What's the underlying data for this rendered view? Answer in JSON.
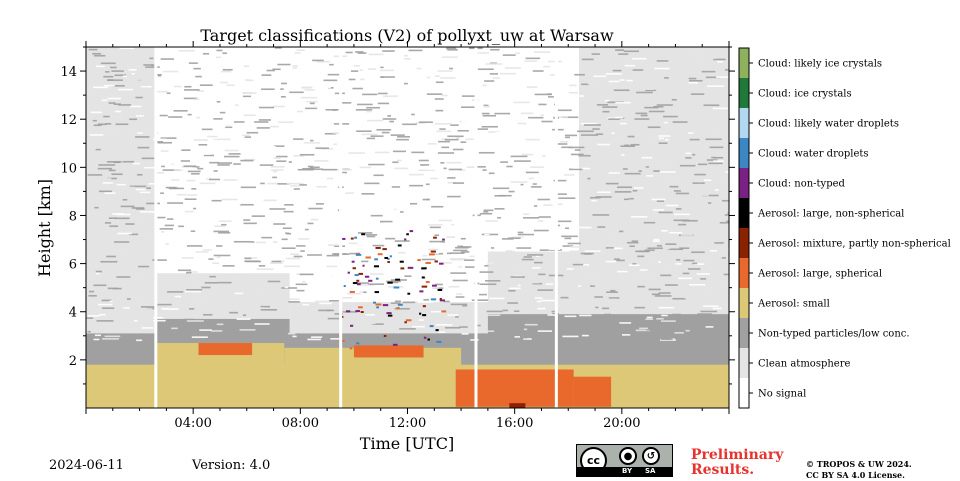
{
  "chart_data": {
    "type": "heatmap",
    "title": "Target classifications (V2) of pollyxt_uw at Warsaw",
    "xlabel": "Time [UTC]",
    "ylabel": "Height [km]",
    "x_range_hours": [
      0,
      24
    ],
    "y_range_km": [
      0,
      15
    ],
    "x_ticks": [
      {
        "value": 4,
        "label": "04:00"
      },
      {
        "value": 8,
        "label": "08:00"
      },
      {
        "value": 12,
        "label": "12:00"
      },
      {
        "value": 16,
        "label": "16:00"
      },
      {
        "value": 20,
        "label": "20:00"
      }
    ],
    "y_ticks": [
      {
        "value": 2,
        "label": "2"
      },
      {
        "value": 4,
        "label": "4"
      },
      {
        "value": 6,
        "label": "6"
      },
      {
        "value": 8,
        "label": "8"
      },
      {
        "value": 10,
        "label": "10"
      },
      {
        "value": 12,
        "label": "12"
      },
      {
        "value": 14,
        "label": "14"
      }
    ],
    "classes": [
      {
        "label": "Cloud: likely ice crystals",
        "color": "#8fb05c"
      },
      {
        "label": "Cloud: ice crystals",
        "color": "#1f7a3a"
      },
      {
        "label": "Cloud: likely water droplets",
        "color": "#b2d7f0"
      },
      {
        "label": "Cloud: water droplets",
        "color": "#3b87c4"
      },
      {
        "label": "Cloud: non-typed",
        "color": "#7b2184"
      },
      {
        "label": "Aerosol: large, non-spherical",
        "color": "#000000"
      },
      {
        "label": "Aerosol: mixture, partly non-spherical",
        "color": "#8a2200"
      },
      {
        "label": "Aerosol: large, spherical",
        "color": "#e8692b"
      },
      {
        "label": "Aerosol: small",
        "color": "#dcc877"
      },
      {
        "label": "Non-typed particles/low conc.",
        "color": "#a0a0a0"
      },
      {
        "label": "Clean atmosphere",
        "color": "#e4e4e4"
      },
      {
        "label": "No signal",
        "color": "#ffffff"
      }
    ],
    "regions": [
      {
        "cls": 10,
        "t0": 0,
        "t1": 2.6,
        "top": 15,
        "bottom": 2.6
      },
      {
        "cls": 10,
        "t0": 2.6,
        "t1": 7.6,
        "top": 5.6,
        "bottom": 2.8
      },
      {
        "cls": 10,
        "t0": 7.6,
        "t1": 15,
        "top": 4.4,
        "bottom": 2.8
      },
      {
        "cls": 10,
        "t0": 15,
        "t1": 18.4,
        "top": 6.5,
        "bottom": 2.8
      },
      {
        "cls": 10,
        "t0": 18.4,
        "t1": 24,
        "top": 15,
        "bottom": 2.8
      },
      {
        "cls": 9,
        "t0": 0,
        "t1": 24,
        "top": 3.1,
        "bottom": 1.6
      },
      {
        "cls": 9,
        "t0": 2.6,
        "t1": 7.6,
        "top": 3.7,
        "bottom": 2.6
      },
      {
        "cls": 9,
        "t0": 15,
        "t1": 24,
        "top": 3.9,
        "bottom": 2.6
      },
      {
        "cls": 8,
        "t0": 0,
        "t1": 24,
        "top": 1.8,
        "bottom": 0
      },
      {
        "cls": 8,
        "t0": 2.6,
        "t1": 7.4,
        "top": 2.7,
        "bottom": 0
      },
      {
        "cls": 8,
        "t0": 7.4,
        "t1": 14,
        "top": 2.5,
        "bottom": 0
      },
      {
        "cls": 8,
        "t0": 20,
        "t1": 24,
        "top": 1.3,
        "bottom": 0
      },
      {
        "cls": 7,
        "t0": 13.8,
        "t1": 18.2,
        "top": 1.6,
        "bottom": 0.05
      },
      {
        "cls": 7,
        "t0": 18.2,
        "t1": 19.6,
        "top": 1.3,
        "bottom": 0.05
      },
      {
        "cls": 7,
        "t0": 4.2,
        "t1": 6.2,
        "top": 2.7,
        "bottom": 2.2
      },
      {
        "cls": 7,
        "t0": 10.0,
        "t1": 12.6,
        "top": 2.6,
        "bottom": 2.1
      },
      {
        "cls": 6,
        "t0": 15.8,
        "t1": 16.4,
        "top": 0.2,
        "bottom": 0.02
      }
    ],
    "gaps_hours": [
      2.55,
      9.45,
      14.5,
      17.5
    ],
    "speckle_classes": [
      6,
      7,
      4,
      3,
      5
    ],
    "grid": false
  },
  "footer": {
    "date": "2024-06-11",
    "version": "Version: 4.0",
    "preliminary_line1": "Preliminary",
    "preliminary_line2": "Results.",
    "copyright_line1": "© TROPOS & UW 2024.",
    "copyright_line2": "CC BY SA 4.0 License.",
    "license_by": "BY",
    "license_sa": "SA",
    "license_cc": "cc"
  }
}
